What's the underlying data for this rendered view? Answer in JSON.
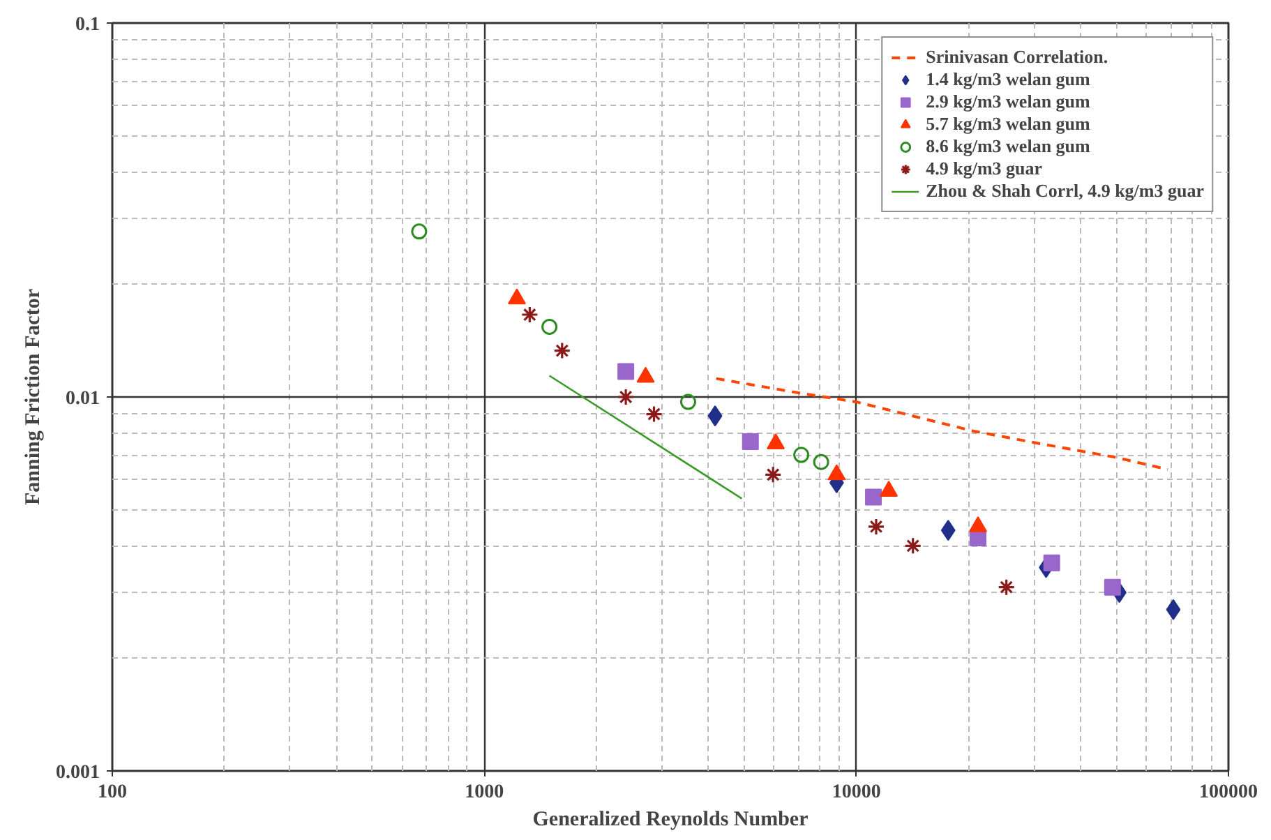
{
  "chart_data": {
    "type": "scatter",
    "xlabel": "Generalized Reynolds Number",
    "ylabel": "Fanning Friction Factor",
    "log": "xy",
    "grid": true,
    "legend": "top right",
    "xlim": [
      100,
      100000
    ],
    "ylim": [
      0.001,
      0.1
    ],
    "xticks": [
      100,
      1000,
      10000,
      100000
    ],
    "yticks": [
      0.001,
      0.01,
      0.1
    ],
    "series": [
      {
        "name": "Srinivasan Correlation.",
        "type": "line",
        "line_style": "dashed",
        "marker": "none",
        "color": "#ff4500",
        "x": [
          4200,
          7230,
          10000,
          20700,
          31200,
          49600,
          68700
        ],
        "values": [
          0.0112,
          0.0102,
          0.0097,
          0.0081,
          0.0075,
          0.0069,
          0.0064
        ]
      },
      {
        "name": "1.4 kg/m3 welan gum",
        "marker": "diamond",
        "color": "#1f2f8a",
        "x": [
          4170,
          8850,
          17650,
          32350,
          50900,
          71100
        ],
        "values": [
          0.0089,
          0.0059,
          0.0044,
          0.0035,
          0.003,
          0.0027
        ]
      },
      {
        "name": "2.9 kg/m3 welan gum",
        "marker": "square",
        "color": "#9966cc",
        "x": [
          2400,
          5190,
          11110,
          21230,
          33500,
          48800
        ],
        "values": [
          0.0117,
          0.0076,
          0.0054,
          0.0042,
          0.0036,
          0.0031
        ]
      },
      {
        "name": "5.7 kg/m3 welan gum",
        "marker": "triangle",
        "color": "#ff3300",
        "x": [
          1223,
          2713,
          6070,
          8850,
          12220,
          21230
        ],
        "values": [
          0.0183,
          0.0113,
          0.0075,
          0.0062,
          0.0056,
          0.0045
        ]
      },
      {
        "name": "8.6 kg/m3 welan gum",
        "marker": "circle",
        "color": "#2e8b22",
        "x": [
          668,
          1496,
          3530,
          7110,
          8040
        ],
        "values": [
          0.0277,
          0.0154,
          0.0097,
          0.007,
          0.0067
        ]
      },
      {
        "name": "4.9 kg/m3 guar",
        "marker": "cross",
        "color": "#8b1a1a",
        "x": [
          1324,
          1618,
          2400,
          2857,
          5970,
          11300,
          14190,
          25300
        ],
        "values": [
          0.0166,
          0.0133,
          0.01,
          0.009,
          0.0062,
          0.0045,
          0.004,
          0.0031
        ]
      },
      {
        "name": "Zhou & Shah Corrl, 4.9 kg/m3 guar",
        "type": "line",
        "line_style": "solid",
        "marker": "none",
        "color": "#3a9a2a",
        "x": [
          1496,
          4920
        ],
        "values": [
          0.0114,
          0.00535
        ]
      }
    ]
  }
}
